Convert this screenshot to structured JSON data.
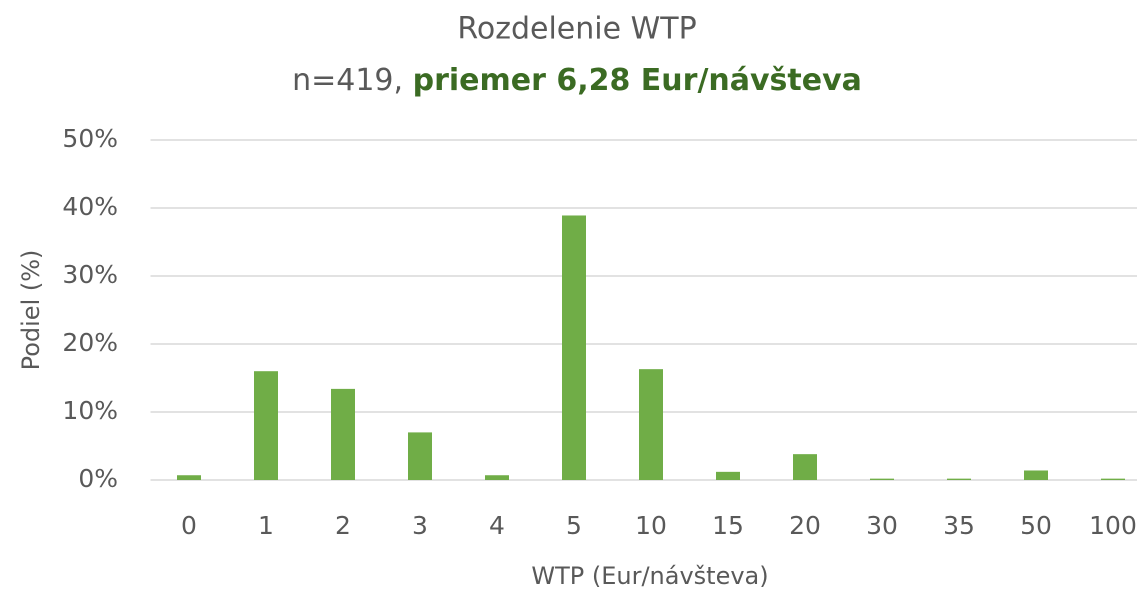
{
  "chart_data": {
    "type": "bar",
    "title": "Rozdelenie WTP",
    "subtitle": "n=419,",
    "subtitle_highlight": "priemer 6,28 Eur/návšteva",
    "x_label": "WTP (Eur/návšteva)",
    "y_label": "Podiel (%)",
    "categories": [
      "0",
      "1",
      "2",
      "3",
      "4",
      "5",
      "10",
      "15",
      "20",
      "30",
      "35",
      "50",
      "100"
    ],
    "values": [
      0.7,
      16.0,
      13.4,
      7.0,
      0.7,
      38.9,
      16.3,
      1.2,
      3.8,
      0.2,
      0.2,
      1.4,
      0.2
    ],
    "color": "#70ad47",
    "highlight_color": "#3b6b23",
    "ylim": [
      0,
      50
    ],
    "yticks": [
      {
        "value": 0,
        "label": "0%"
      },
      {
        "value": 10,
        "label": "10%"
      },
      {
        "value": 20,
        "label": "20%"
      },
      {
        "value": 30,
        "label": "30%"
      },
      {
        "value": 40,
        "label": "40%"
      },
      {
        "value": 50,
        "label": "50%"
      }
    ],
    "grid": true
  }
}
